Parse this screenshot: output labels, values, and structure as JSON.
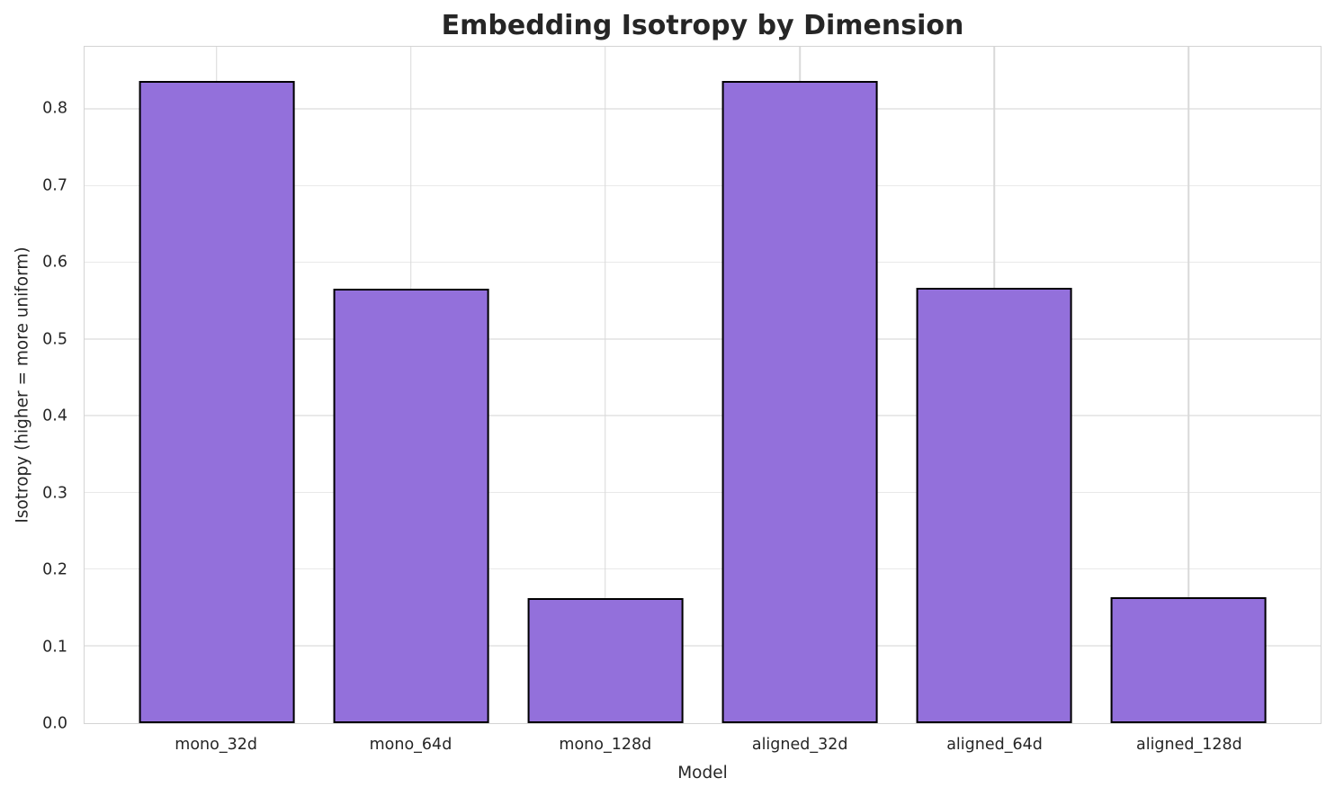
{
  "chart_data": {
    "type": "bar",
    "title": "Embedding Isotropy by Dimension",
    "xlabel": "Model",
    "ylabel": "Isotropy (higher = more uniform)",
    "categories": [
      "mono_32d",
      "mono_64d",
      "mono_128d",
      "aligned_32d",
      "aligned_64d",
      "aligned_128d"
    ],
    "values": [
      0.838,
      0.567,
      0.163,
      0.838,
      0.568,
      0.164
    ],
    "ylim": [
      0,
      0.882
    ],
    "ytick_labels": [
      "0.0",
      "0.1",
      "0.2",
      "0.3",
      "0.4",
      "0.5",
      "0.6",
      "0.7",
      "0.8"
    ],
    "grid": true,
    "legend": "none",
    "bar_color": "#9370DB",
    "bar_edge_color": "#000000",
    "hgrid_color": "#e9e9e9",
    "vgrid_color": "#d9d9d9",
    "spine_color": "#d4d4d4",
    "text_color": "#262626",
    "bar_width_fraction": 0.8
  }
}
